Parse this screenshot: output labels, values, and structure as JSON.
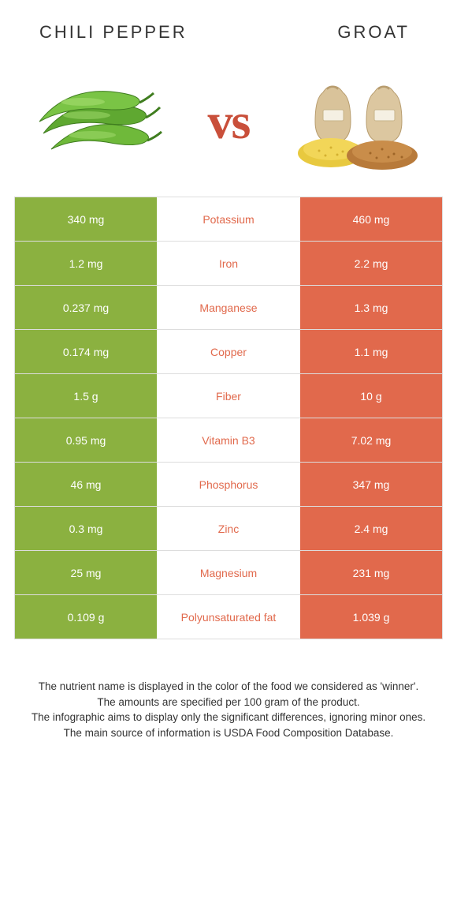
{
  "colors": {
    "left": "#8bb140",
    "right": "#e1694c",
    "winner_text": "#e1694c",
    "vs": "#c94f3a"
  },
  "header": {
    "left_title": "Chili pepper",
    "right_title": "Groat",
    "vs": "vs"
  },
  "rows": [
    {
      "left": "340 mg",
      "label": "Potassium",
      "right": "460 mg",
      "winner": "right"
    },
    {
      "left": "1.2 mg",
      "label": "Iron",
      "right": "2.2 mg",
      "winner": "right"
    },
    {
      "left": "0.237 mg",
      "label": "Manganese",
      "right": "1.3 mg",
      "winner": "right"
    },
    {
      "left": "0.174 mg",
      "label": "Copper",
      "right": "1.1 mg",
      "winner": "right"
    },
    {
      "left": "1.5 g",
      "label": "Fiber",
      "right": "10 g",
      "winner": "right"
    },
    {
      "left": "0.95 mg",
      "label": "Vitamin B3",
      "right": "7.02 mg",
      "winner": "right"
    },
    {
      "left": "46 mg",
      "label": "Phosphorus",
      "right": "347 mg",
      "winner": "right"
    },
    {
      "left": "0.3 mg",
      "label": "Zinc",
      "right": "2.4 mg",
      "winner": "right"
    },
    {
      "left": "25 mg",
      "label": "Magnesium",
      "right": "231 mg",
      "winner": "right"
    },
    {
      "left": "0.109 g",
      "label": "Polyunsaturated fat",
      "right": "1.039 g",
      "winner": "right"
    }
  ],
  "footer": {
    "line1": "The nutrient name is displayed in the color of the food we considered as 'winner'.",
    "line2": "The amounts are specified per 100 gram of the product.",
    "line3": "The infographic aims to display only the significant differences, ignoring minor ones.",
    "line4": "The main source of information is USDA Food Composition Database."
  }
}
